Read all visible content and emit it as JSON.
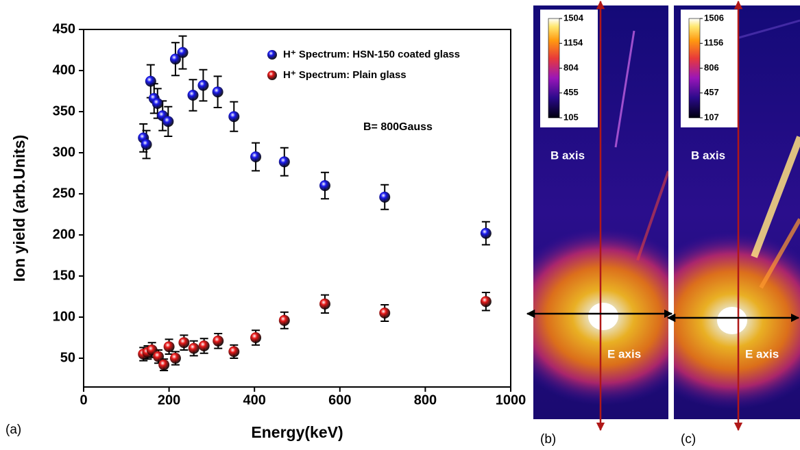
{
  "chart_data": [
    {
      "type": "scatter",
      "panel_label": "(a)",
      "x_label": "Energy(keV)",
      "y_label": "Ion yield (arb.Units)",
      "annotation": "B= 800Gauss",
      "xlim": [
        0,
        1000
      ],
      "xticks": [
        0,
        200,
        400,
        600,
        800,
        1000
      ],
      "ylim": [
        15,
        450
      ],
      "yticks": [
        50,
        100,
        150,
        200,
        250,
        300,
        350,
        400,
        450
      ],
      "series": [
        {
          "name": "H⁺ Spectrum: HSN-150 coated glass",
          "color": "#1a1af0",
          "x": [
            140,
            147,
            157,
            165,
            173,
            185,
            198,
            215,
            232,
            256,
            280,
            314,
            352,
            403,
            470,
            565,
            705,
            942
          ],
          "values": [
            318,
            310,
            387,
            366,
            360,
            345,
            338,
            414,
            422,
            370,
            382,
            374,
            344,
            295,
            289,
            260,
            246,
            202
          ],
          "errors": [
            17,
            17,
            20,
            18,
            18,
            18,
            18,
            20,
            20,
            19,
            19,
            19,
            18,
            17,
            17,
            16,
            15,
            14
          ]
        },
        {
          "name": "H⁺ Spectrum: Plain glass",
          "color": "#e81818",
          "x": [
            140,
            150,
            160,
            175,
            188,
            200,
            215,
            235,
            258,
            282,
            315,
            352,
            403,
            470,
            565,
            705,
            942
          ],
          "values": [
            55,
            57,
            60,
            52,
            42,
            64,
            50,
            69,
            62,
            65,
            71,
            58,
            75,
            96,
            116,
            105,
            119
          ],
          "errors": [
            8,
            8,
            9,
            8,
            7,
            9,
            8,
            9,
            9,
            9,
            9,
            8,
            9,
            10,
            11,
            10,
            11
          ]
        }
      ]
    },
    {
      "type": "image",
      "panel_label": "(b)",
      "b_label": "B axis",
      "e_label": "E axis",
      "clim": [
        105,
        1504
      ],
      "cticks": [
        105,
        455,
        804,
        1154,
        1504
      ]
    },
    {
      "type": "image",
      "panel_label": "(c)",
      "b_label": "B axis",
      "e_label": "E axis",
      "clim": [
        107,
        1506
      ],
      "cticks": [
        107,
        457,
        806,
        1156,
        1506
      ]
    }
  ]
}
